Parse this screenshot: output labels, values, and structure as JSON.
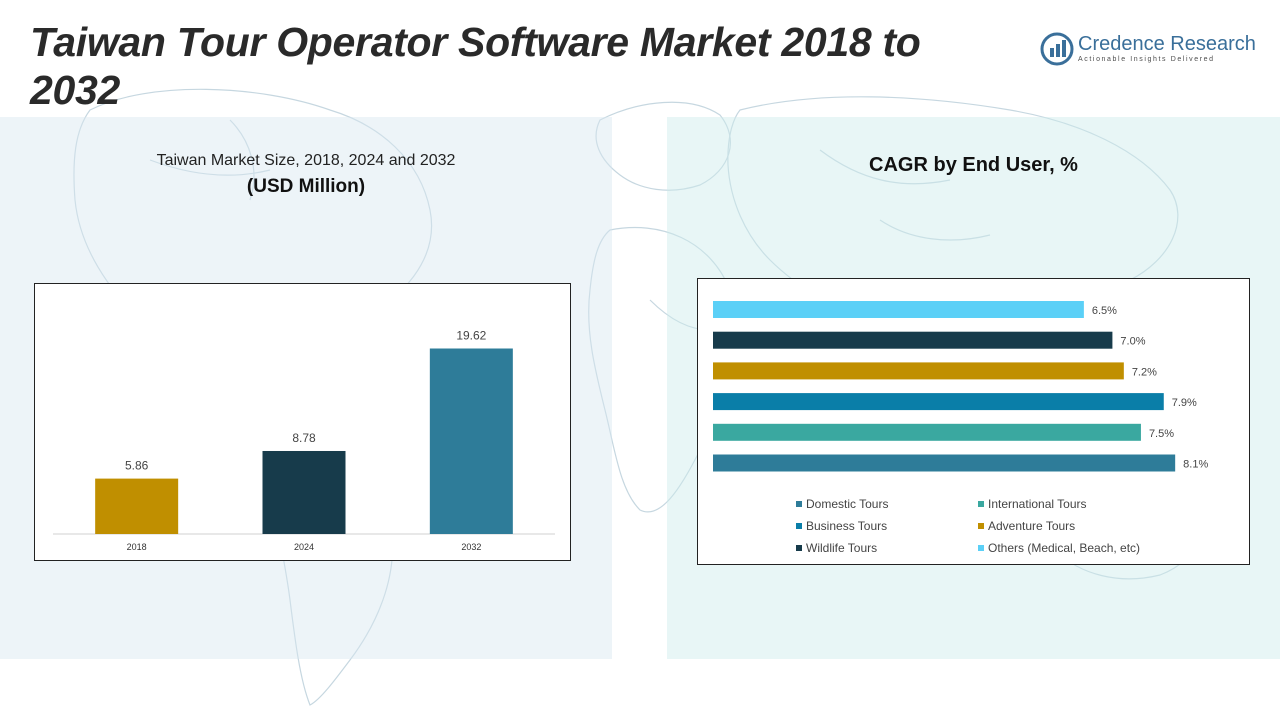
{
  "page": {
    "title": "Taiwan  Tour Operator Software Market 2018 to 2032",
    "logo": {
      "name": "Credence Research",
      "tagline": "Actionable Insights Delivered"
    }
  },
  "left_panel": {
    "subtitle": "Taiwan  Market Size, 2018, 2024 and 2032",
    "unit": "(USD Million)"
  },
  "right_panel": {
    "title": "CAGR by End User, %"
  },
  "chart_data": [
    {
      "type": "bar",
      "title": "Taiwan  Market Size, 2018, 2024 and 2032",
      "ylabel": "(USD Million)",
      "categories": [
        "2018",
        "2024",
        "2032"
      ],
      "values": [
        5.86,
        8.78,
        19.62
      ],
      "value_labels": [
        "5.86",
        "8.78",
        "19.62"
      ],
      "colors": [
        "#c08f00",
        "#173b4b",
        "#2e7c99"
      ],
      "ylim": [
        0,
        22
      ],
      "grid": false
    },
    {
      "type": "bar",
      "orientation": "horizontal",
      "title": "CAGR by End User, %",
      "categories": [
        "Others (Medical, Beach, etc)",
        "Wildlife Tours",
        "Adventure Tours",
        "Business Tours",
        "International Tours",
        "Domestic Tours"
      ],
      "values": [
        6.5,
        7.0,
        7.2,
        7.9,
        7.5,
        8.1
      ],
      "value_labels": [
        "6.5%",
        "7.0%",
        "7.2%",
        "7.9%",
        "7.5%",
        "8.1%"
      ],
      "colors": [
        "#5bd0f7",
        "#173b4b",
        "#c08f00",
        "#0a7ea8",
        "#3aa8a0",
        "#2e7c99"
      ],
      "xlim": [
        0,
        8.5
      ],
      "grid": false,
      "legend_position": "bottom",
      "legend": [
        {
          "label": "Domestic Tours",
          "color": "#2e7c99"
        },
        {
          "label": "International Tours",
          "color": "#3aa8a0"
        },
        {
          "label": "Business Tours",
          "color": "#0a7ea8"
        },
        {
          "label": "Adventure Tours",
          "color": "#c08f00"
        },
        {
          "label": "Wildlife Tours",
          "color": "#173b4b"
        },
        {
          "label": "Others (Medical, Beach, etc)",
          "color": "#5bd0f7"
        }
      ]
    }
  ]
}
